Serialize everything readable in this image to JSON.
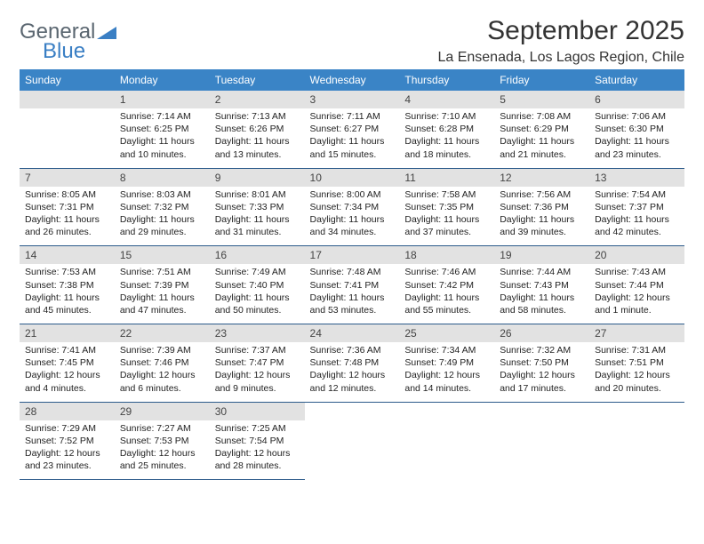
{
  "brand": {
    "part1": "General",
    "part2": "Blue"
  },
  "title": "September 2025",
  "location": "La Ensenada, Los Lagos Region, Chile",
  "colors": {
    "header_bg": "#3a84c6",
    "header_text": "#ffffff",
    "daynum_bg": "#e2e2e2",
    "daynum_text": "#444444",
    "cell_border": "#2c5a8a",
    "logo_gray": "#5a6670",
    "logo_blue": "#3a7fc4"
  },
  "weekdays": [
    "Sunday",
    "Monday",
    "Tuesday",
    "Wednesday",
    "Thursday",
    "Friday",
    "Saturday"
  ],
  "weeks": [
    [
      {
        "empty": true
      },
      {
        "day": "1",
        "sunrise": "Sunrise: 7:14 AM",
        "sunset": "Sunset: 6:25 PM",
        "daylight1": "Daylight: 11 hours",
        "daylight2": "and 10 minutes."
      },
      {
        "day": "2",
        "sunrise": "Sunrise: 7:13 AM",
        "sunset": "Sunset: 6:26 PM",
        "daylight1": "Daylight: 11 hours",
        "daylight2": "and 13 minutes."
      },
      {
        "day": "3",
        "sunrise": "Sunrise: 7:11 AM",
        "sunset": "Sunset: 6:27 PM",
        "daylight1": "Daylight: 11 hours",
        "daylight2": "and 15 minutes."
      },
      {
        "day": "4",
        "sunrise": "Sunrise: 7:10 AM",
        "sunset": "Sunset: 6:28 PM",
        "daylight1": "Daylight: 11 hours",
        "daylight2": "and 18 minutes."
      },
      {
        "day": "5",
        "sunrise": "Sunrise: 7:08 AM",
        "sunset": "Sunset: 6:29 PM",
        "daylight1": "Daylight: 11 hours",
        "daylight2": "and 21 minutes."
      },
      {
        "day": "6",
        "sunrise": "Sunrise: 7:06 AM",
        "sunset": "Sunset: 6:30 PM",
        "daylight1": "Daylight: 11 hours",
        "daylight2": "and 23 minutes."
      }
    ],
    [
      {
        "day": "7",
        "sunrise": "Sunrise: 8:05 AM",
        "sunset": "Sunset: 7:31 PM",
        "daylight1": "Daylight: 11 hours",
        "daylight2": "and 26 minutes."
      },
      {
        "day": "8",
        "sunrise": "Sunrise: 8:03 AM",
        "sunset": "Sunset: 7:32 PM",
        "daylight1": "Daylight: 11 hours",
        "daylight2": "and 29 minutes."
      },
      {
        "day": "9",
        "sunrise": "Sunrise: 8:01 AM",
        "sunset": "Sunset: 7:33 PM",
        "daylight1": "Daylight: 11 hours",
        "daylight2": "and 31 minutes."
      },
      {
        "day": "10",
        "sunrise": "Sunrise: 8:00 AM",
        "sunset": "Sunset: 7:34 PM",
        "daylight1": "Daylight: 11 hours",
        "daylight2": "and 34 minutes."
      },
      {
        "day": "11",
        "sunrise": "Sunrise: 7:58 AM",
        "sunset": "Sunset: 7:35 PM",
        "daylight1": "Daylight: 11 hours",
        "daylight2": "and 37 minutes."
      },
      {
        "day": "12",
        "sunrise": "Sunrise: 7:56 AM",
        "sunset": "Sunset: 7:36 PM",
        "daylight1": "Daylight: 11 hours",
        "daylight2": "and 39 minutes."
      },
      {
        "day": "13",
        "sunrise": "Sunrise: 7:54 AM",
        "sunset": "Sunset: 7:37 PM",
        "daylight1": "Daylight: 11 hours",
        "daylight2": "and 42 minutes."
      }
    ],
    [
      {
        "day": "14",
        "sunrise": "Sunrise: 7:53 AM",
        "sunset": "Sunset: 7:38 PM",
        "daylight1": "Daylight: 11 hours",
        "daylight2": "and 45 minutes."
      },
      {
        "day": "15",
        "sunrise": "Sunrise: 7:51 AM",
        "sunset": "Sunset: 7:39 PM",
        "daylight1": "Daylight: 11 hours",
        "daylight2": "and 47 minutes."
      },
      {
        "day": "16",
        "sunrise": "Sunrise: 7:49 AM",
        "sunset": "Sunset: 7:40 PM",
        "daylight1": "Daylight: 11 hours",
        "daylight2": "and 50 minutes."
      },
      {
        "day": "17",
        "sunrise": "Sunrise: 7:48 AM",
        "sunset": "Sunset: 7:41 PM",
        "daylight1": "Daylight: 11 hours",
        "daylight2": "and 53 minutes."
      },
      {
        "day": "18",
        "sunrise": "Sunrise: 7:46 AM",
        "sunset": "Sunset: 7:42 PM",
        "daylight1": "Daylight: 11 hours",
        "daylight2": "and 55 minutes."
      },
      {
        "day": "19",
        "sunrise": "Sunrise: 7:44 AM",
        "sunset": "Sunset: 7:43 PM",
        "daylight1": "Daylight: 11 hours",
        "daylight2": "and 58 minutes."
      },
      {
        "day": "20",
        "sunrise": "Sunrise: 7:43 AM",
        "sunset": "Sunset: 7:44 PM",
        "daylight1": "Daylight: 12 hours",
        "daylight2": "and 1 minute."
      }
    ],
    [
      {
        "day": "21",
        "sunrise": "Sunrise: 7:41 AM",
        "sunset": "Sunset: 7:45 PM",
        "daylight1": "Daylight: 12 hours",
        "daylight2": "and 4 minutes."
      },
      {
        "day": "22",
        "sunrise": "Sunrise: 7:39 AM",
        "sunset": "Sunset: 7:46 PM",
        "daylight1": "Daylight: 12 hours",
        "daylight2": "and 6 minutes."
      },
      {
        "day": "23",
        "sunrise": "Sunrise: 7:37 AM",
        "sunset": "Sunset: 7:47 PM",
        "daylight1": "Daylight: 12 hours",
        "daylight2": "and 9 minutes."
      },
      {
        "day": "24",
        "sunrise": "Sunrise: 7:36 AM",
        "sunset": "Sunset: 7:48 PM",
        "daylight1": "Daylight: 12 hours",
        "daylight2": "and 12 minutes."
      },
      {
        "day": "25",
        "sunrise": "Sunrise: 7:34 AM",
        "sunset": "Sunset: 7:49 PM",
        "daylight1": "Daylight: 12 hours",
        "daylight2": "and 14 minutes."
      },
      {
        "day": "26",
        "sunrise": "Sunrise: 7:32 AM",
        "sunset": "Sunset: 7:50 PM",
        "daylight1": "Daylight: 12 hours",
        "daylight2": "and 17 minutes."
      },
      {
        "day": "27",
        "sunrise": "Sunrise: 7:31 AM",
        "sunset": "Sunset: 7:51 PM",
        "daylight1": "Daylight: 12 hours",
        "daylight2": "and 20 minutes."
      }
    ],
    [
      {
        "day": "28",
        "sunrise": "Sunrise: 7:29 AM",
        "sunset": "Sunset: 7:52 PM",
        "daylight1": "Daylight: 12 hours",
        "daylight2": "and 23 minutes."
      },
      {
        "day": "29",
        "sunrise": "Sunrise: 7:27 AM",
        "sunset": "Sunset: 7:53 PM",
        "daylight1": "Daylight: 12 hours",
        "daylight2": "and 25 minutes."
      },
      {
        "day": "30",
        "sunrise": "Sunrise: 7:25 AM",
        "sunset": "Sunset: 7:54 PM",
        "daylight1": "Daylight: 12 hours",
        "daylight2": "and 28 minutes."
      },
      {
        "empty": true
      },
      {
        "empty": true
      },
      {
        "empty": true
      },
      {
        "empty": true
      }
    ]
  ]
}
